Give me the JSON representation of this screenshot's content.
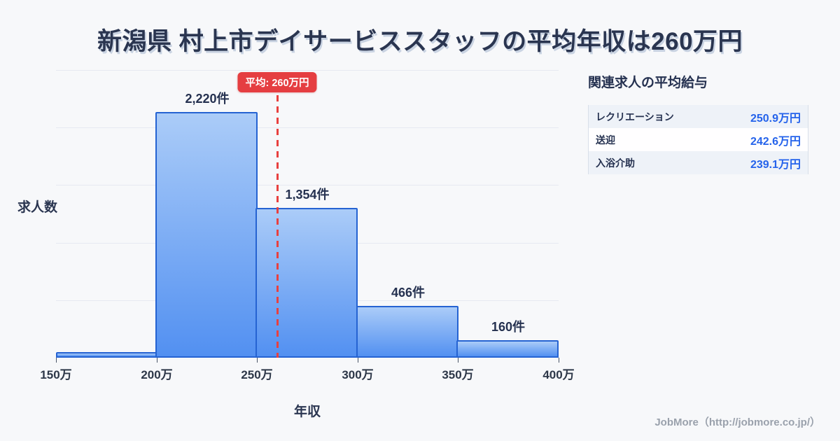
{
  "title": "新潟県 村上市デイサービススタッフの平均年収は260万円",
  "colors": {
    "background": "#f7f8fa",
    "title_navy": "#2a3550",
    "bar_fill_top": "#abccf8",
    "bar_fill_bottom": "#5290f1",
    "bar_border": "#2563d2",
    "average_red": "#e53e41",
    "value_blue": "#2563eb",
    "gridline": "#e6e9f1",
    "footer_gray": "#9aa1ac",
    "table_stripe": "#eef2f8"
  },
  "chart_data": {
    "type": "bar",
    "title": "新潟県 村上市デイサービススタッフの平均年収は260万円",
    "xlabel": "年収",
    "ylabel": "求人数",
    "categories": [
      "150万-200万",
      "200万-250万",
      "250万-300万",
      "300万-350万",
      "350万-400万"
    ],
    "values": [
      50,
      2220,
      1354,
      466,
      160
    ],
    "bar_labels": [
      "",
      "2,220件",
      "1,354件",
      "466件",
      "160件"
    ],
    "x_tick_labels": [
      "150万",
      "200万",
      "250万",
      "300万",
      "350万",
      "400万"
    ],
    "x_range_man_yen": [
      150,
      400
    ],
    "ylim": [
      0,
      2600
    ],
    "grid": true,
    "gridline_count": 5,
    "average_value_man_yen": 260,
    "average_label": "平均: 260万円",
    "note": "first bin value (~50) estimated from bar height; no data label shown"
  },
  "related": {
    "heading": "関連求人の平均給与",
    "rows": [
      {
        "label": "レクリエーション",
        "value": "250.9万円"
      },
      {
        "label": "送迎",
        "value": "242.6万円"
      },
      {
        "label": "入浴介助",
        "value": "239.1万円"
      }
    ]
  },
  "footer": {
    "credit": "JobMore（http://jobmore.co.jp/）"
  }
}
